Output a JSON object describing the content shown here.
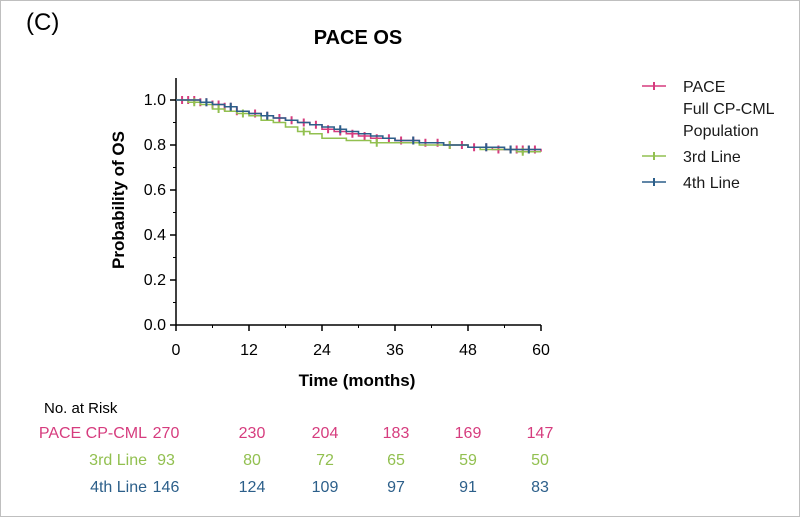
{
  "panel_label": "(C)",
  "chart_data": {
    "type": "line",
    "title": "PACE OS",
    "xlabel": "Time (months)",
    "ylabel": "Probability of OS",
    "xlim": [
      0,
      60
    ],
    "ylim": [
      0,
      1.1
    ],
    "xticks": [
      0,
      12,
      24,
      36,
      48,
      60
    ],
    "yticks": [
      0.0,
      0.2,
      0.4,
      0.6,
      0.8,
      1.0
    ],
    "xtick_labels": [
      "0",
      "12",
      "24",
      "36",
      "48",
      "60"
    ],
    "ytick_labels": [
      "0.0",
      "0.2",
      "0.4",
      "0.6",
      "0.8",
      "1.0"
    ],
    "legend_position": "right",
    "series": [
      {
        "name": "PACE Full CP-CML Population",
        "legend_lines": [
          "PACE",
          "Full CP-CML",
          "Population"
        ],
        "color": "#d63c7e",
        "x": [
          0,
          2,
          4,
          6,
          8,
          10,
          12,
          14,
          16,
          18,
          20,
          22,
          24,
          26,
          28,
          30,
          32,
          34,
          36,
          38,
          40,
          42,
          44,
          46,
          48,
          50,
          52,
          54,
          56,
          58,
          60
        ],
        "y": [
          1.0,
          1.0,
          0.99,
          0.98,
          0.97,
          0.95,
          0.94,
          0.93,
          0.92,
          0.91,
          0.9,
          0.89,
          0.87,
          0.86,
          0.85,
          0.84,
          0.83,
          0.83,
          0.82,
          0.82,
          0.81,
          0.81,
          0.8,
          0.8,
          0.79,
          0.79,
          0.78,
          0.78,
          0.78,
          0.78,
          0.77
        ],
        "censor_x": [
          1,
          2,
          3,
          4,
          5,
          6,
          7,
          8,
          9,
          10,
          13,
          15,
          17,
          19,
          21,
          23,
          25,
          27,
          29,
          31,
          33,
          35,
          37,
          39,
          41,
          43,
          45,
          47,
          49,
          51,
          53,
          55,
          56,
          57,
          58,
          59
        ]
      },
      {
        "name": "3rd Line",
        "legend_lines": [
          "3rd Line"
        ],
        "color": "#92c050",
        "x": [
          0,
          2,
          4,
          6,
          8,
          10,
          12,
          14,
          16,
          18,
          20,
          22,
          24,
          26,
          28,
          30,
          32,
          34,
          36,
          38,
          40,
          42,
          44,
          46,
          48,
          50,
          52,
          54,
          56,
          58,
          60
        ],
        "y": [
          1.0,
          0.99,
          0.98,
          0.96,
          0.95,
          0.94,
          0.93,
          0.91,
          0.9,
          0.88,
          0.86,
          0.85,
          0.83,
          0.83,
          0.82,
          0.82,
          0.81,
          0.81,
          0.81,
          0.81,
          0.8,
          0.8,
          0.8,
          0.8,
          0.79,
          0.78,
          0.78,
          0.78,
          0.77,
          0.77,
          0.77
        ],
        "censor_x": [
          3,
          7,
          11,
          21,
          33,
          45,
          57
        ]
      },
      {
        "name": "4th Line",
        "legend_lines": [
          "4th Line"
        ],
        "color": "#2c5f8a",
        "x": [
          0,
          2,
          4,
          6,
          8,
          10,
          12,
          14,
          16,
          18,
          20,
          22,
          24,
          26,
          28,
          30,
          32,
          34,
          36,
          38,
          40,
          42,
          44,
          46,
          48,
          50,
          52,
          54,
          56,
          58,
          60
        ],
        "y": [
          1.0,
          1.0,
          0.99,
          0.98,
          0.97,
          0.95,
          0.94,
          0.93,
          0.92,
          0.91,
          0.9,
          0.89,
          0.88,
          0.87,
          0.86,
          0.85,
          0.84,
          0.83,
          0.82,
          0.82,
          0.81,
          0.81,
          0.8,
          0.8,
          0.79,
          0.79,
          0.79,
          0.78,
          0.78,
          0.78,
          0.78
        ],
        "censor_x": [
          5,
          9,
          15,
          27,
          39,
          51,
          55,
          58
        ]
      }
    ]
  },
  "risk_table": {
    "heading": "No. at Risk",
    "rows": [
      {
        "label": "PACE CP-CML",
        "color": "#d63c7e",
        "values": [
          "270",
          "230",
          "204",
          "183",
          "169",
          "147"
        ]
      },
      {
        "label": "3rd Line",
        "color": "#92c050",
        "values": [
          "93",
          "80",
          "72",
          "65",
          "59",
          "50"
        ]
      },
      {
        "label": "4th Line",
        "color": "#2c5f8a",
        "values": [
          "146",
          "124",
          "109",
          "97",
          "91",
          "83"
        ]
      }
    ]
  }
}
